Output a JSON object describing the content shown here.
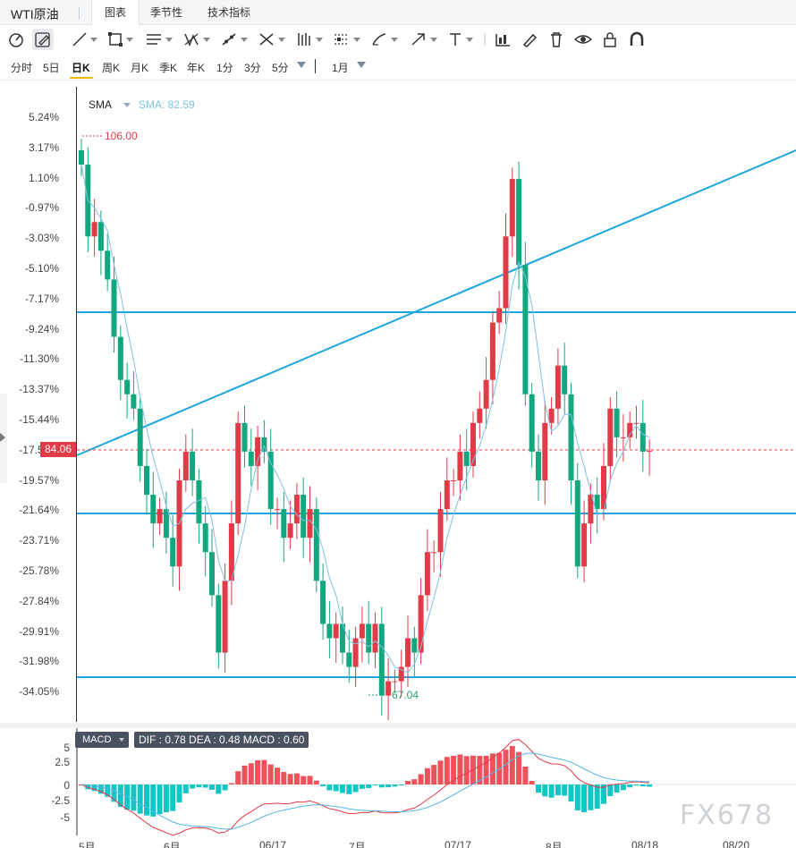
{
  "header": {
    "title": "WTI原油",
    "tabs": [
      {
        "label": "图表",
        "active": true
      },
      {
        "label": "季节性",
        "active": false
      },
      {
        "label": "技术指标",
        "active": false
      }
    ]
  },
  "toolbar": {
    "icons": [
      "crosshair-icon",
      "pencil-icon",
      "trendline-icon",
      "rectangle-icon",
      "parallel-channel-icon",
      "pattern-icon",
      "ray-icon",
      "fib-icon",
      "pitchfork-icon",
      "projection-icon",
      "brush-icon",
      "arrow-icon",
      "text-icon",
      "bars-icon",
      "edit-icon",
      "trash-icon",
      "eye-icon",
      "lock-icon",
      "magnet-icon"
    ]
  },
  "timeframes": {
    "items": [
      "分时",
      "5日",
      "日K",
      "周K",
      "月K",
      "季K",
      "年K",
      "1分",
      "3分",
      "5分"
    ],
    "active": "日K",
    "period": "1月"
  },
  "chart": {
    "sma": {
      "label": "SMA",
      "value": "SMA: 82.59"
    },
    "current_price": "84.06",
    "high_label": "106.00",
    "low_label": "67.04",
    "y_ticks": [
      "5.24%",
      "3.17%",
      "1.10%",
      "-0.97%",
      "-3.03%",
      "-5.10%",
      "-7.17%",
      "-9.24%",
      "-11.30%",
      "-13.37%",
      "-15.44%",
      "-17.51%",
      "-19.57%",
      "-21.64%",
      "-23.71%",
      "-25.78%",
      "-27.84%",
      "-29.91%",
      "-31.98%",
      "-34.05%"
    ],
    "x_ticks": [
      "5月",
      "6月",
      "06/17",
      "7月",
      "07/17",
      "8月",
      "08/18",
      "08/20"
    ]
  },
  "macd": {
    "label": "MACD",
    "values": "DIF : 0.78  DEA : 0.48  MACD : 0.60",
    "y_ticks": [
      "5",
      "2.5",
      "0",
      "-2.5",
      "-5"
    ]
  },
  "watermark": "FX678",
  "chart_data": {
    "type": "candlestick",
    "current_price": 84.06,
    "high": 106.0,
    "low": 67.04,
    "candles_close_approx": [
      104,
      99,
      100,
      98,
      96,
      92,
      89,
      88,
      87,
      83,
      81,
      79,
      80,
      78,
      76,
      82,
      84,
      82,
      79,
      77,
      74,
      70,
      75,
      79,
      86,
      84,
      83,
      85,
      84,
      80,
      80,
      78,
      79,
      81,
      78,
      80,
      75,
      72,
      71,
      72,
      70,
      69,
      71,
      72,
      70,
      72,
      67,
      68,
      68,
      69,
      71,
      70,
      74,
      77,
      77,
      80,
      82,
      82,
      84,
      83,
      86,
      87,
      89,
      93,
      94,
      99,
      103,
      97,
      88,
      84,
      82,
      86,
      87,
      90,
      88,
      82,
      76,
      79,
      81,
      80,
      83,
      87,
      85,
      85,
      86,
      86,
      84,
      84.06
    ],
    "sma_last": 82.59,
    "macd": {
      "dif": 0.78,
      "dea": 0.48,
      "macd": 0.6
    }
  }
}
